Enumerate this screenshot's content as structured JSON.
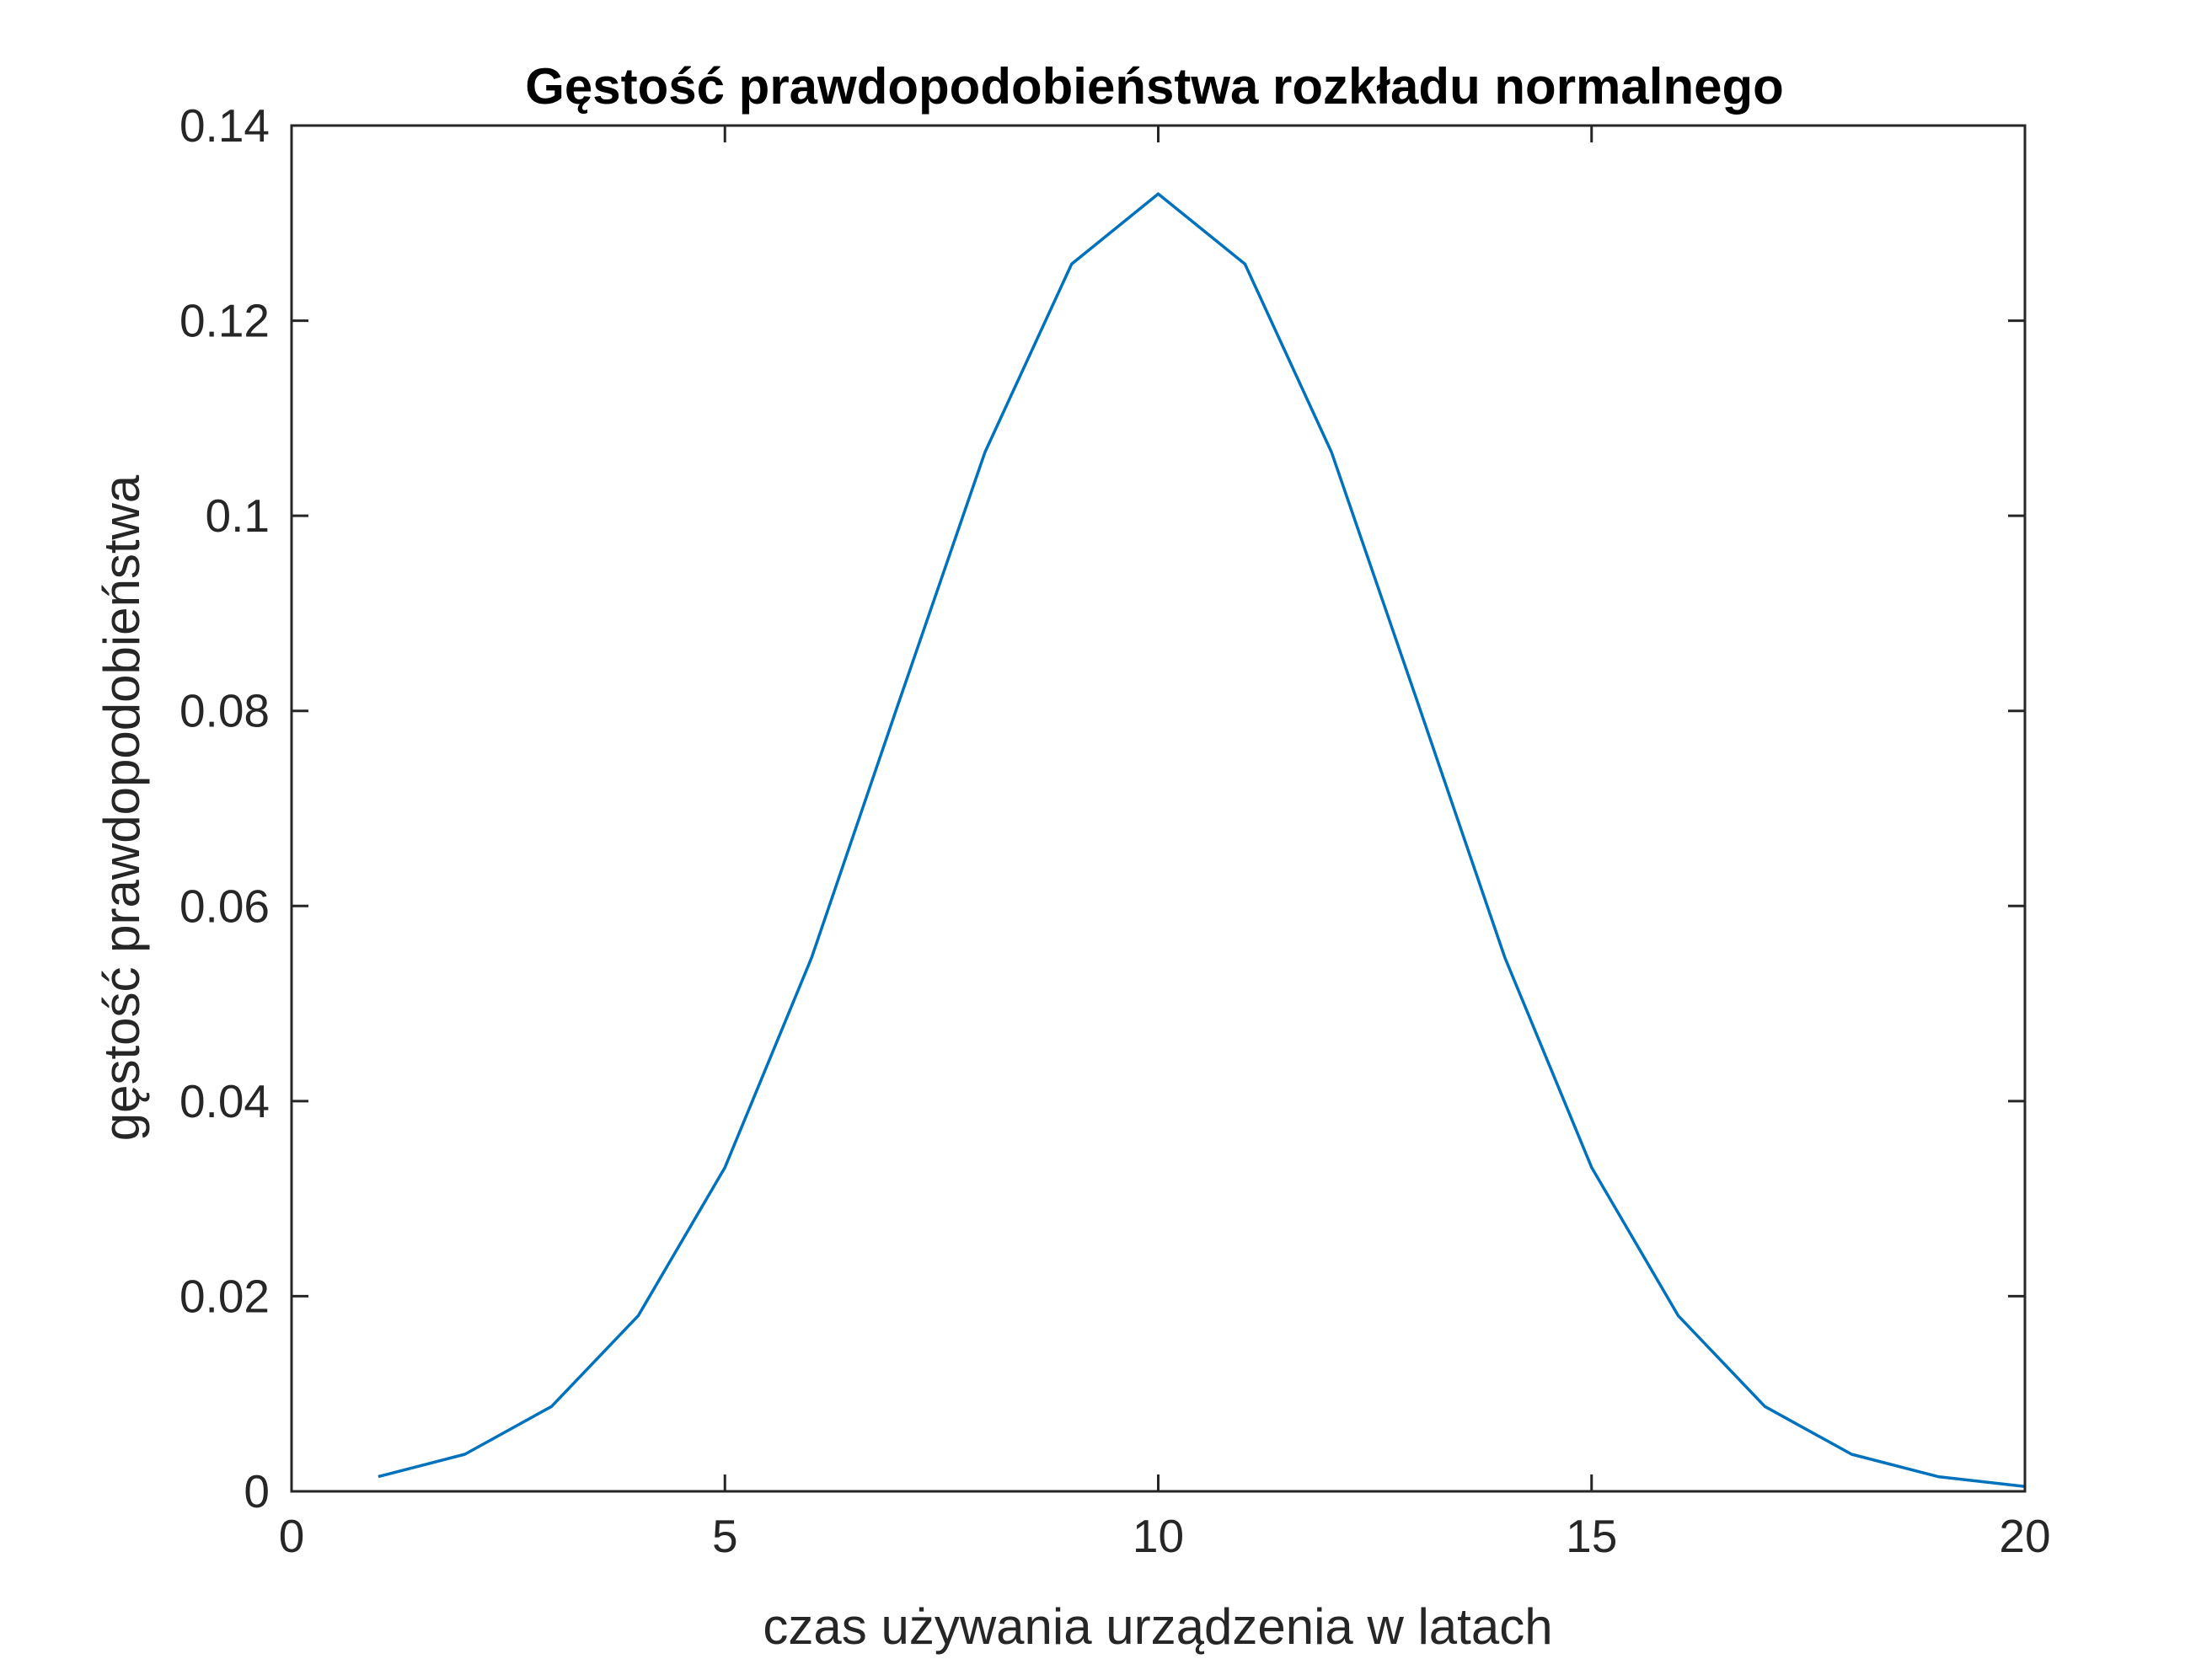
{
  "chart_data": {
    "type": "line",
    "title": "Gęstość prawdopodobieństwa rozkładu normalnego",
    "xlabel": "czas używania urządzenia w latach",
    "ylabel": "gęstość prawdopodobieństwa",
    "xlim": [
      0,
      20
    ],
    "ylim": [
      0,
      0.14
    ],
    "xticks": [
      0,
      5,
      10,
      15,
      20
    ],
    "xtick_labels": [
      "0",
      "5",
      "10",
      "15",
      "20"
    ],
    "yticks": [
      0,
      0.02,
      0.04,
      0.06,
      0.08,
      0.1,
      0.12,
      0.14
    ],
    "ytick_labels": [
      "0",
      "0.02",
      "0.04",
      "0.06",
      "0.08",
      "0.1",
      "0.12",
      "0.14"
    ],
    "grid": false,
    "series": [
      {
        "color": "#0072BD",
        "x": [
          1,
          2,
          3,
          4,
          5,
          6,
          7,
          8,
          9,
          10,
          11,
          12,
          13,
          14,
          15,
          16,
          17,
          18,
          19,
          20
        ],
        "y": [
          0.0015,
          0.0038,
          0.0087,
          0.018,
          0.0332,
          0.0547,
          0.0807,
          0.1065,
          0.1258,
          0.133,
          0.1258,
          0.1065,
          0.0807,
          0.0547,
          0.0332,
          0.018,
          0.0087,
          0.0038,
          0.0015,
          0.0005
        ]
      }
    ]
  }
}
